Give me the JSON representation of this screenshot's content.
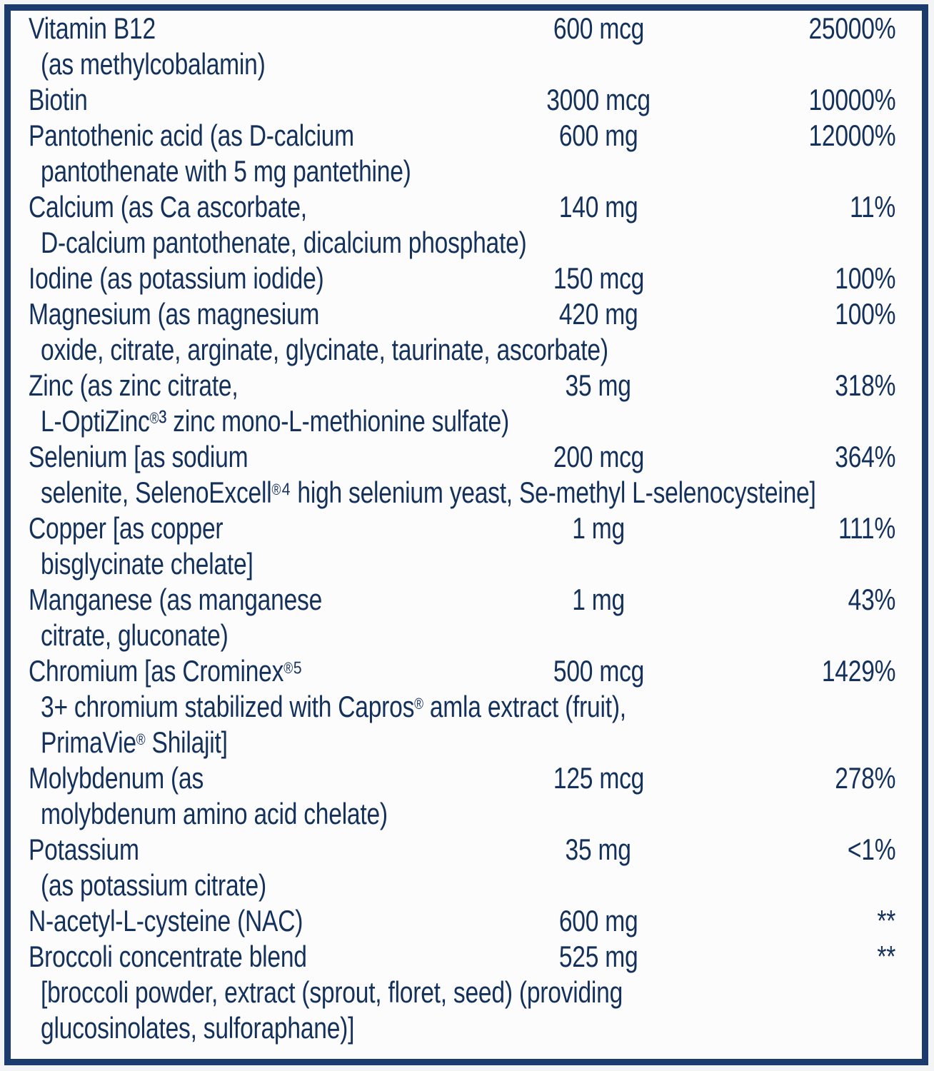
{
  "label": {
    "text_color": "#14315c",
    "border_color": "#1b3a6e",
    "background_color": "#fcfcfd",
    "columns": [
      "ingredient",
      "amount_per_serving",
      "percent_daily_value"
    ],
    "rows": [
      {
        "name": "Vitamin B12",
        "amount": "600 mcg",
        "dv": "25000%",
        "cont": [
          "(as methylcobalamin)"
        ]
      },
      {
        "name": "Biotin",
        "amount": "3000 mcg",
        "dv": "10000%",
        "cont": []
      },
      {
        "name": "Pantothenic acid (as D-calcium",
        "amount": "600 mg",
        "dv": "12000%",
        "cont": [
          "pantothenate with 5 mg pantethine)"
        ]
      },
      {
        "name": "Calcium (as Ca ascorbate,",
        "amount": "140 mg",
        "dv": "11%",
        "cont": [
          "D-calcium pantothenate, dicalcium phosphate)"
        ]
      },
      {
        "name": "Iodine (as potassium iodide)",
        "amount": "150 mcg",
        "dv": "100%",
        "cont": []
      },
      {
        "name": "Magnesium (as magnesium",
        "amount": "420 mg",
        "dv": "100%",
        "cont": [
          "oxide, citrate, arginate, glycinate, taurinate, ascorbate)"
        ]
      },
      {
        "name": "Zinc (as zinc citrate,",
        "amount": "35 mg",
        "dv": "318%",
        "cont": [
          "L-OptiZinc®³ zinc mono-L-methionine sulfate)"
        ]
      },
      {
        "name": "Selenium [as sodium",
        "amount": "200 mcg",
        "dv": "364%",
        "cont": [
          "selenite, SelenoExcell®⁴ high selenium yeast, Se-methyl L-selenocysteine]"
        ]
      },
      {
        "name": "Copper [as copper",
        "amount": "1 mg",
        "dv": "111%",
        "cont": [
          "bisglycinate chelate]"
        ]
      },
      {
        "name": "Manganese (as manganese",
        "amount": "1 mg",
        "dv": "43%",
        "cont": [
          "citrate, gluconate)"
        ]
      },
      {
        "name": "Chromium [as Crominex®⁵",
        "amount": "500 mcg",
        "dv": "1429%",
        "cont": [
          "3+ chromium stabilized with Capros® amla extract (fruit),",
          "PrimaVie® Shilajit]"
        ]
      },
      {
        "name": "Molybdenum (as",
        "amount": "125 mcg",
        "dv": "278%",
        "cont": [
          "molybdenum amino acid chelate)"
        ]
      },
      {
        "name": "Potassium",
        "amount": "35 mg",
        "dv": "<1%",
        "cont": [
          "(as potassium citrate)"
        ]
      },
      {
        "name": "N-acetyl-L-cysteine (NAC)",
        "amount": "600 mg",
        "dv": "**",
        "cont": []
      },
      {
        "name": "Broccoli concentrate blend",
        "amount": "525 mg",
        "dv": "**",
        "cont": [
          "[broccoli powder, extract (sprout, floret, seed) (providing",
          "glucosinolates, sulforaphane)]"
        ]
      }
    ]
  }
}
